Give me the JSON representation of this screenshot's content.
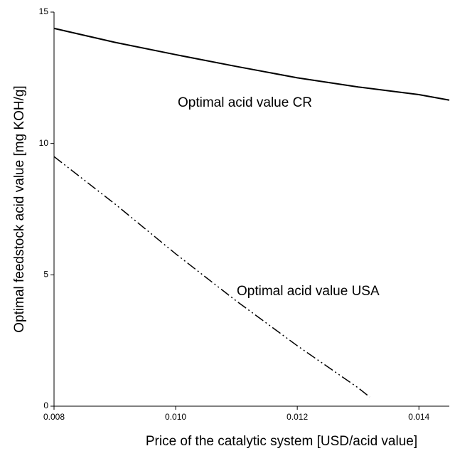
{
  "chart_data": {
    "type": "line",
    "x_label": "Price of the catalytic system [USD/acid value]",
    "y_label": "Optimal feedstock acid value [mg KOH/g]",
    "annotations": [
      "Optimal acid value CR",
      "Optimal acid value USA"
    ],
    "xlim": [
      0.008,
      0.0145
    ],
    "xticks": [
      0.008,
      {
        "value": 0.01,
        "label": "0.010"
      },
      {
        "value": 0.012,
        "label": "0.012"
      },
      {
        "value": 0.014,
        "label": "0.014"
      }
    ],
    "ylim": [
      0,
      15
    ],
    "yticks": [
      0,
      5,
      10,
      15
    ],
    "grid": false,
    "series": [
      {
        "name": "Optimal acid value CR",
        "color": "#000000",
        "dash": "solid",
        "x": [
          0.008,
          0.009,
          0.01,
          0.011,
          0.012,
          0.013,
          0.014,
          0.0145
        ],
        "values": [
          14.38,
          13.85,
          13.38,
          12.93,
          12.5,
          12.15,
          11.86,
          11.65
        ]
      },
      {
        "name": "Optimal acid value USA",
        "color": "#000000",
        "dash": "dashdotdot",
        "x": [
          0.008,
          0.009,
          0.01,
          0.011,
          0.012,
          0.013,
          0.01319
        ],
        "values": [
          9.5,
          7.7,
          5.8,
          4.0,
          2.3,
          0.7,
          0.35
        ]
      }
    ]
  }
}
